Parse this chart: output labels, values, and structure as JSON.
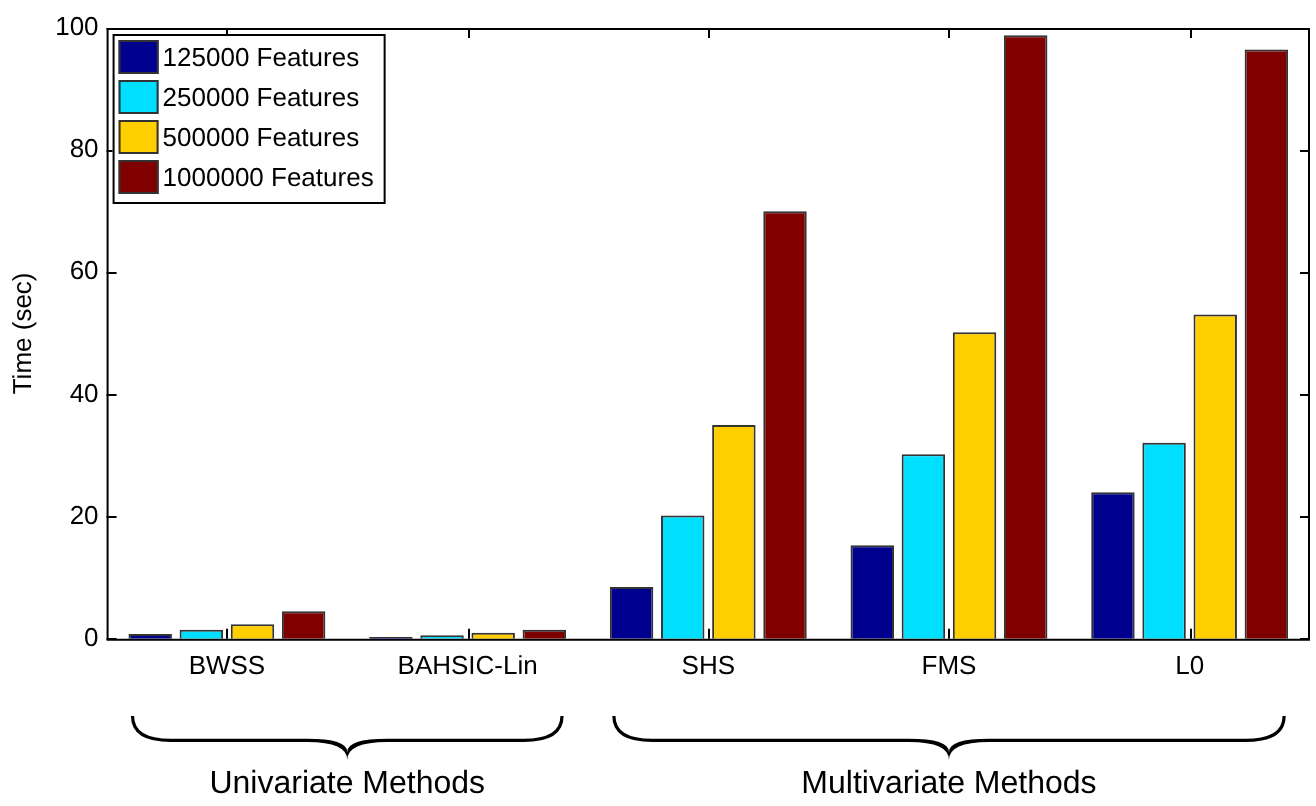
{
  "chart_data": {
    "type": "bar",
    "ylabel": "Time (sec)",
    "categories": [
      "BWSS",
      "BAHSIC-Lin",
      "SHS",
      "FMS",
      "L0"
    ],
    "series": [
      {
        "name": "125000 Features",
        "color": "#00008f",
        "values": [
          0.8,
          0.3,
          8.5,
          15.3,
          24
        ]
      },
      {
        "name": "250000 Features",
        "color": "#00dfff",
        "values": [
          1.5,
          0.6,
          20.2,
          30.2,
          32.1
        ]
      },
      {
        "name": "500000 Features",
        "color": "#ffcf00",
        "values": [
          2.4,
          1.0,
          35,
          50.2,
          53.1
        ]
      },
      {
        "name": "1000000 Features",
        "color": "#800000",
        "values": [
          4.5,
          1.5,
          70,
          98.8,
          96.5
        ]
      }
    ],
    "ylim": [
      0,
      100
    ],
    "yticks": [
      0,
      20,
      40,
      60,
      80,
      100
    ],
    "grid": false,
    "legend": "top left",
    "annotations": [
      "Univariate Methods",
      "Multivariate Methods"
    ]
  }
}
